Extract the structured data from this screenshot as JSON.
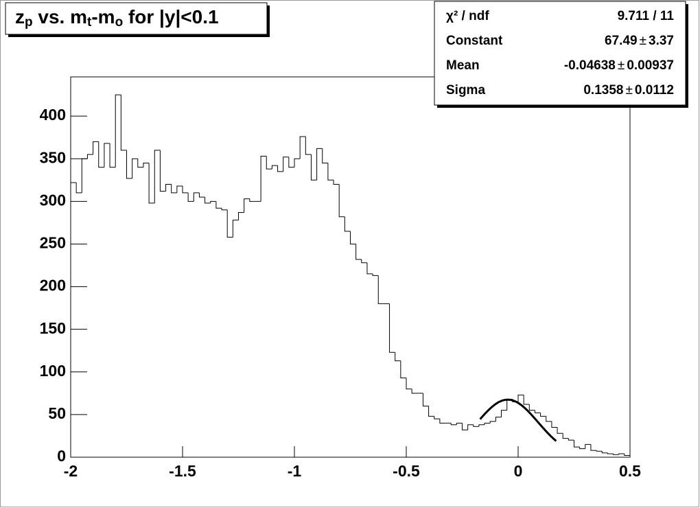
{
  "chart_data": {
    "type": "histogram",
    "title": [
      {
        "text": "z"
      },
      {
        "text": "p",
        "sub": true
      },
      {
        "text": " vs. m"
      },
      {
        "text": "t",
        "sub": true
      },
      {
        "text": "-m"
      },
      {
        "text": "o",
        "sub": true
      },
      {
        "text": " for |y|<0.1"
      }
    ],
    "bins": [
      -2,
      -1.975,
      -1.95,
      -1.925,
      -1.9,
      -1.875,
      -1.85,
      -1.825,
      -1.8,
      -1.775,
      -1.75,
      -1.725,
      -1.7,
      -1.675,
      -1.65,
      -1.625,
      -1.6,
      -1.575,
      -1.55,
      -1.525,
      -1.5,
      -1.475,
      -1.45,
      -1.425,
      -1.4,
      -1.375,
      -1.35,
      -1.325,
      -1.3,
      -1.275,
      -1.25,
      -1.225,
      -1.2,
      -1.175,
      -1.15,
      -1.125,
      -1.1,
      -1.075,
      -1.05,
      -1.025,
      -1,
      -0.975,
      -0.95,
      -0.925,
      -0.9,
      -0.875,
      -0.85,
      -0.825,
      -0.8,
      -0.775,
      -0.75,
      -0.725,
      -0.7,
      -0.675,
      -0.65,
      -0.625,
      -0.6,
      -0.575,
      -0.55,
      -0.525,
      -0.5,
      -0.475,
      -0.45,
      -0.425,
      -0.4,
      -0.375,
      -0.35,
      -0.325,
      -0.3,
      -0.275,
      -0.25,
      -0.225,
      -0.2,
      -0.175,
      -0.15,
      -0.125,
      -0.1,
      -0.075,
      -0.05,
      -0.025,
      0,
      0.025,
      0.05,
      0.075,
      0.1,
      0.125,
      0.15,
      0.175,
      0.2,
      0.225,
      0.25,
      0.275,
      0.3,
      0.325,
      0.35,
      0.375,
      0.4,
      0.425,
      0.45,
      0.475,
      0.5
    ],
    "values": [
      322,
      310,
      350,
      355,
      370,
      340,
      368,
      340,
      425,
      360,
      327,
      350,
      340,
      345,
      298,
      360,
      312,
      320,
      310,
      318,
      310,
      300,
      310,
      305,
      298,
      300,
      292,
      290,
      258,
      278,
      287,
      303,
      300,
      300,
      353,
      338,
      342,
      335,
      352,
      340,
      350,
      376,
      355,
      325,
      362,
      345,
      325,
      320,
      282,
      265,
      250,
      232,
      228,
      215,
      213,
      180,
      180,
      123,
      113,
      93,
      80,
      75,
      75,
      60,
      48,
      45,
      40,
      40,
      38,
      40,
      32,
      38,
      36,
      38,
      40,
      42,
      47,
      55,
      68,
      65,
      73,
      62,
      55,
      52,
      48,
      42,
      35,
      28,
      22,
      20,
      12,
      10,
      15,
      8,
      7,
      5,
      4,
      3,
      4,
      2
    ],
    "color": "#000000",
    "xlim": [
      -2,
      0.5
    ],
    "xticks": [
      -2,
      -1.5,
      -1,
      -0.5,
      0,
      0.5
    ],
    "ylim": [
      0,
      446
    ],
    "yticks": [
      0,
      50,
      100,
      150,
      200,
      250,
      300,
      350,
      400
    ],
    "fit": {
      "xrange": [
        -0.17,
        0.17
      ],
      "color": "#000000"
    },
    "stats": {
      "pm": "±",
      "chi2": {
        "label": "χ² / ndf",
        "value": "9.711 / 11"
      },
      "rows": [
        {
          "label": "Constant",
          "value": 67.49,
          "error": 3.37
        },
        {
          "label": "Mean",
          "value": -0.04638,
          "error": 0.00937
        },
        {
          "label": "Sigma",
          "value": 0.1358,
          "error": 0.0112
        }
      ]
    }
  }
}
